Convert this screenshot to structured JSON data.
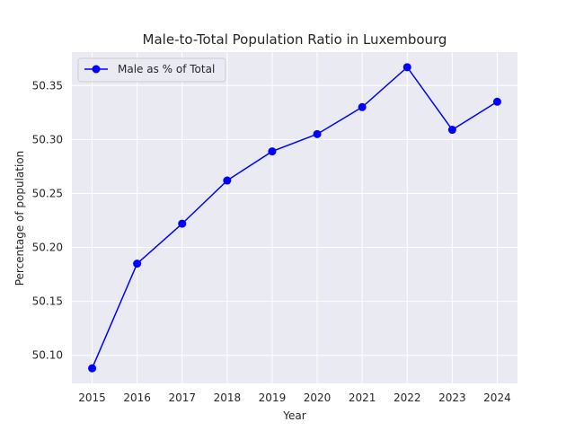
{
  "chart_data": {
    "type": "line",
    "title": "Male-to-Total Population Ratio in Luxembourg",
    "xlabel": "Year",
    "ylabel": "Percentage of population",
    "x": [
      2015,
      2016,
      2017,
      2018,
      2019,
      2020,
      2021,
      2022,
      2023,
      2024
    ],
    "series": [
      {
        "name": "Male as % of Total",
        "color": "#0000ff",
        "marker": "circle",
        "values": [
          50.088,
          50.185,
          50.222,
          50.262,
          50.289,
          50.305,
          50.33,
          50.367,
          50.309,
          50.335
        ]
      }
    ],
    "xlim": [
      2014.55,
      2024.45
    ],
    "ylim": [
      50.074,
      50.381
    ],
    "yticks": [
      "50.10",
      "50.15",
      "50.20",
      "50.25",
      "50.30",
      "50.35"
    ],
    "xticks": [
      "2015",
      "2016",
      "2017",
      "2018",
      "2019",
      "2020",
      "2021",
      "2022",
      "2023",
      "2024"
    ],
    "grid": true,
    "background": "#eaeaf2",
    "legend_position": "upper-left"
  }
}
